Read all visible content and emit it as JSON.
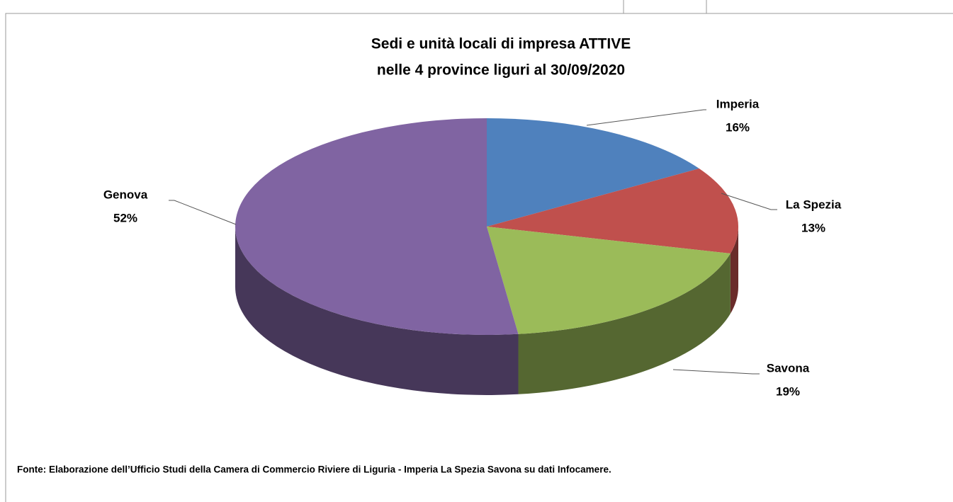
{
  "chart_data": {
    "type": "pie",
    "title": [
      "Sedi e unità locali di impresa ATTIVE",
      "nelle 4 province liguri al 30/09/2020"
    ],
    "categories": [
      "Imperia",
      "La Spezia",
      "Savona",
      "Genova"
    ],
    "values": [
      16,
      13,
      19,
      52
    ],
    "value_labels": [
      "16%",
      "13%",
      "19%",
      "52%"
    ],
    "colors": [
      "#4f81bd",
      "#c0504d",
      "#9bbb59",
      "#8064a2"
    ],
    "source": "Fonte: Elaborazione dell’Ufficio Studi della Camera di Commercio Riviere di Liguria - Imperia La Spezia Savona su dati Infocamere."
  }
}
